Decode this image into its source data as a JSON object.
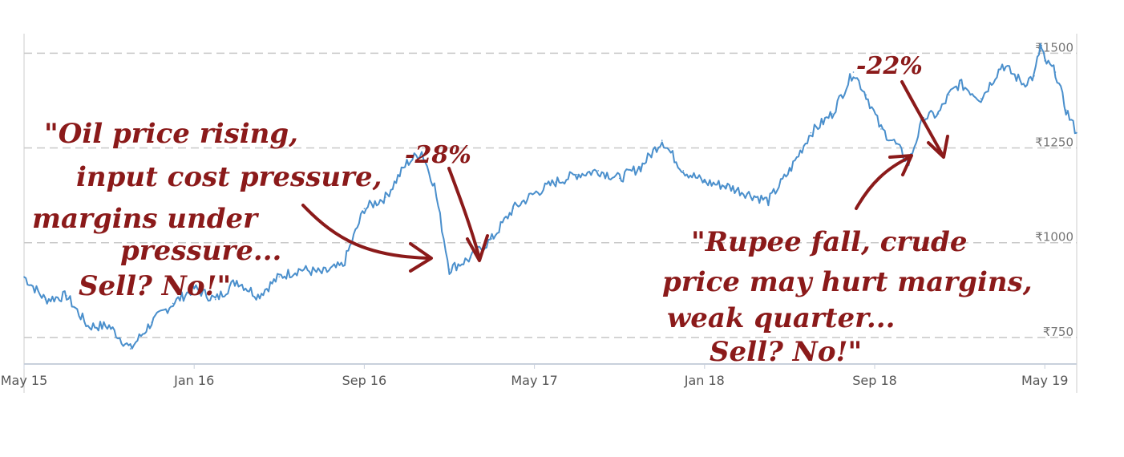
{
  "chart_data": {
    "type": "line",
    "title": "",
    "xlabel": "",
    "ylabel": "",
    "x_tick_labels": [
      "May 15",
      "Jan 16",
      "Sep 16",
      "May 17",
      "Jan 18",
      "Sep 18",
      "May 19"
    ],
    "y_tick_labels": [
      "₹1500",
      "₹1250",
      "₹1000",
      "₹750"
    ],
    "y_ticks": [
      1500,
      1250,
      1000,
      750
    ],
    "ylim": [
      680,
      1560
    ],
    "xlim": [
      0,
      49.5
    ],
    "grid": "horizontal dashed",
    "x_unit": "months since May 15",
    "series": [
      {
        "color": "#4a8fcc",
        "x": [
          0,
          1,
          2,
          3,
          4,
          5,
          6,
          7,
          8,
          9,
          10,
          11,
          12,
          13,
          14,
          15,
          16,
          17,
          18,
          18.7,
          19.3,
          20,
          21,
          22,
          23,
          24,
          25,
          26,
          27,
          28,
          29,
          30,
          31,
          32,
          33,
          34,
          35,
          36,
          37,
          38,
          39,
          39.6,
          40.3,
          41,
          41.6,
          42.3,
          43,
          43.5,
          44,
          45,
          46,
          47,
          47.5,
          47.8,
          48,
          48.5,
          49,
          49.5
        ],
        "values": [
          910,
          850,
          860,
          780,
          780,
          720,
          790,
          840,
          880,
          850,
          900,
          860,
          910,
          930,
          920,
          940,
          1090,
          1120,
          1210,
          1240,
          1150,
          930,
          960,
          1010,
          1090,
          1130,
          1160,
          1180,
          1190,
          1170,
          1200,
          1270,
          1190,
          1160,
          1150,
          1130,
          1110,
          1190,
          1290,
          1340,
          1450,
          1390,
          1300,
          1260,
          1210,
          1330,
          1340,
          1390,
          1420,
          1380,
          1470,
          1420,
          1440,
          1520,
          1480,
          1450,
          1350,
          1290
        ]
      }
    ]
  },
  "annotations": {
    "note_left": [
      "\"Oil price rising,",
      "input cost pressure,",
      "margins under",
      "pressure...",
      "Sell? No!\""
    ],
    "drop_left": "-28%",
    "drop_right": "-22%",
    "note_right": [
      "\"Rupee fall, crude",
      "price may hurt margins,",
      "weak quarter...",
      "Sell? No!\""
    ]
  },
  "colors": {
    "line": "#4a8fcc",
    "annotation": "#8b1a1a",
    "grid": "#c8c8c8",
    "axis": "#c8d0dc"
  }
}
